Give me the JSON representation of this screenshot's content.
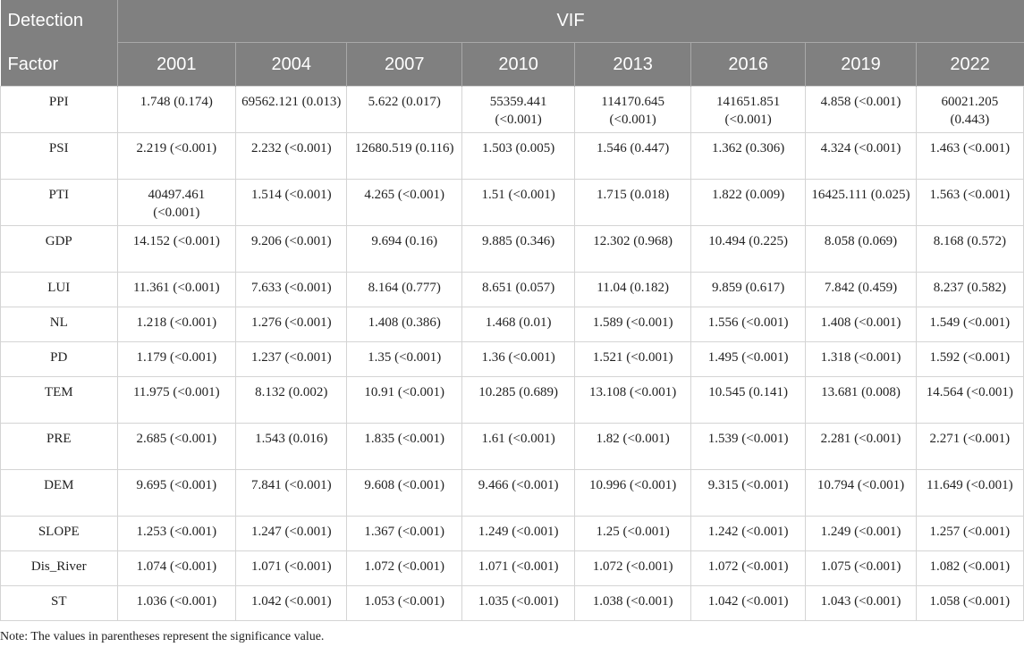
{
  "header": {
    "corner_top": "Detection",
    "corner_bottom": "Factor",
    "group": "VIF",
    "years": [
      "2001",
      "2004",
      "2007",
      "2010",
      "2013",
      "2016",
      "2019",
      "2022"
    ]
  },
  "rows": [
    {
      "factor": "PPI",
      "values": [
        "1.748 (0.174)",
        "69562.121 (0.013)",
        "5.622 (0.017)",
        "55359.441 (<0.001)",
        "114170.645 (<0.001)",
        "141651.851 (<0.001)",
        "4.858 (<0.001)",
        "60021.205 (0.443)"
      ]
    },
    {
      "factor": "PSI",
      "values": [
        "2.219 (<0.001)",
        "2.232 (<0.001)",
        "12680.519 (0.116)",
        "1.503 (0.005)",
        "1.546 (0.447)",
        "1.362 (0.306)",
        "4.324 (<0.001)",
        "1.463 (<0.001)"
      ]
    },
    {
      "factor": "PTI",
      "values": [
        "40497.461 (<0.001)",
        "1.514 (<0.001)",
        "4.265 (<0.001)",
        "1.51 (<0.001)",
        "1.715 (0.018)",
        "1.822 (0.009)",
        "16425.111 (0.025)",
        "1.563 (<0.001)"
      ]
    },
    {
      "factor": "GDP",
      "values": [
        "14.152 (<0.001)",
        "9.206 (<0.001)",
        "9.694 (0.16)",
        "9.885 (0.346)",
        "12.302 (0.968)",
        "10.494 (0.225)",
        "8.058 (0.069)",
        "8.168 (0.572)"
      ]
    },
    {
      "factor": "LUI",
      "values": [
        "11.361 (<0.001)",
        "7.633 (<0.001)",
        "8.164 (0.777)",
        "8.651 (0.057)",
        "11.04 (0.182)",
        "9.859 (0.617)",
        "7.842 (0.459)",
        "8.237 (0.582)"
      ]
    },
    {
      "factor": "NL",
      "values": [
        "1.218 (<0.001)",
        "1.276 (<0.001)",
        "1.408 (0.386)",
        "1.468 (0.01)",
        "1.589 (<0.001)",
        "1.556 (<0.001)",
        "1.408 (<0.001)",
        "1.549 (<0.001)"
      ]
    },
    {
      "factor": "PD",
      "values": [
        "1.179 (<0.001)",
        "1.237 (<0.001)",
        "1.35 (<0.001)",
        "1.36 (<0.001)",
        "1.521 (<0.001)",
        "1.495 (<0.001)",
        "1.318 (<0.001)",
        "1.592 (<0.001)"
      ]
    },
    {
      "factor": "TEM",
      "values": [
        "11.975 (<0.001)",
        "8.132 (0.002)",
        "10.91 (<0.001)",
        "10.285 (0.689)",
        "13.108 (<0.001)",
        "10.545 (0.141)",
        "13.681 (0.008)",
        "14.564 (<0.001)"
      ]
    },
    {
      "factor": "PRE",
      "values": [
        "2.685 (<0.001)",
        "1.543 (0.016)",
        "1.835 (<0.001)",
        "1.61 (<0.001)",
        "1.82 (<0.001)",
        "1.539 (<0.001)",
        "2.281 (<0.001)",
        "2.271 (<0.001)"
      ]
    },
    {
      "factor": "DEM",
      "values": [
        "9.695 (<0.001)",
        "7.841 (<0.001)",
        "9.608 (<0.001)",
        "9.466 (<0.001)",
        "10.996 (<0.001)",
        "9.315 (<0.001)",
        "10.794 (<0.001)",
        "11.649 (<0.001)"
      ]
    },
    {
      "factor": "SLOPE",
      "values": [
        "1.253 (<0.001)",
        "1.247 (<0.001)",
        "1.367 (<0.001)",
        "1.249 (<0.001)",
        "1.25 (<0.001)",
        "1.242 (<0.001)",
        "1.249 (<0.001)",
        "1.257 (<0.001)"
      ]
    },
    {
      "factor": "Dis_River",
      "values": [
        "1.074 (<0.001)",
        "1.071 (<0.001)",
        "1.072 (<0.001)",
        "1.071 (<0.001)",
        "1.072 (<0.001)",
        "1.072 (<0.001)",
        "1.075 (<0.001)",
        "1.082 (<0.001)"
      ]
    },
    {
      "factor": "ST",
      "values": [
        "1.036 (<0.001)",
        "1.042 (<0.001)",
        "1.053 (<0.001)",
        "1.035 (<0.001)",
        "1.038 (<0.001)",
        "1.042 (<0.001)",
        "1.043 (<0.001)",
        "1.058 (<0.001)"
      ]
    }
  ],
  "note": "Note: The values in parentheses represent the significance value."
}
